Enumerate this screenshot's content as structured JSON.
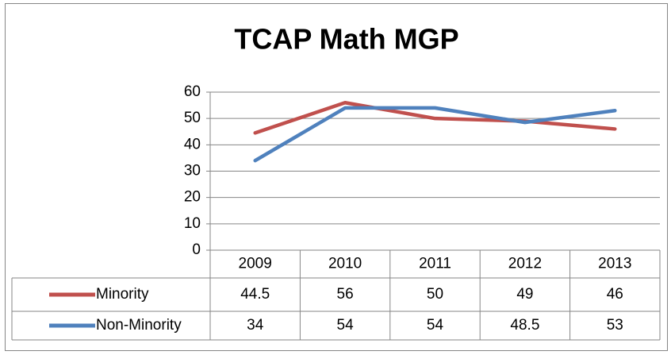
{
  "chart_data": {
    "type": "line",
    "title": "TCAP Math MGP",
    "categories": [
      "2009",
      "2010",
      "2011",
      "2012",
      "2013"
    ],
    "series": [
      {
        "name": "Minority",
        "color": "#c0504d",
        "values": [
          44.5,
          56,
          50,
          49,
          46
        ]
      },
      {
        "name": "Non-Minority",
        "color": "#4f81bd",
        "values": [
          34,
          54,
          54,
          48.5,
          53
        ]
      }
    ],
    "ylim": [
      0,
      60
    ],
    "yticks": [
      0,
      10,
      20,
      30,
      40,
      50,
      60
    ],
    "grid": true,
    "data_table": true
  }
}
